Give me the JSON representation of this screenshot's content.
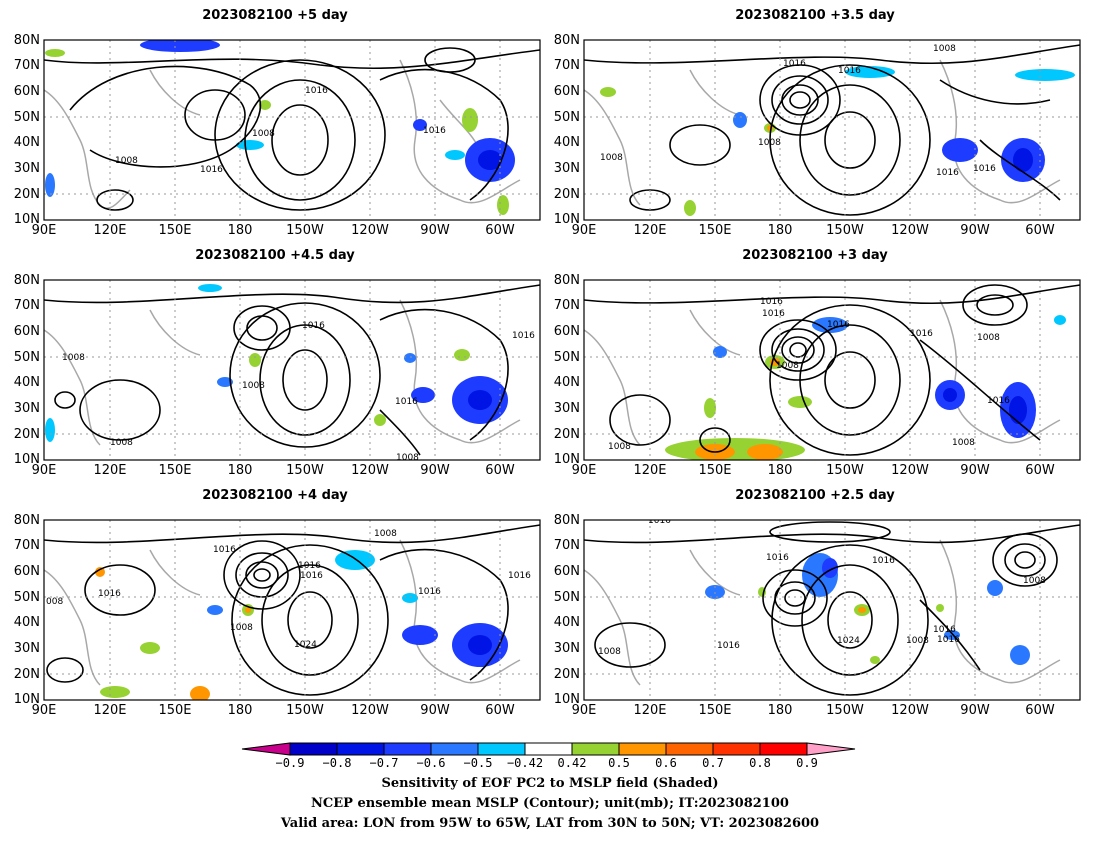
{
  "panels": [
    {
      "title": "2023082100 +5 day",
      "contour_labels": [
        "1016",
        "1008",
        "1016",
        "1008",
        "1016"
      ]
    },
    {
      "title": "2023082100 +3.5 day",
      "contour_labels": [
        "1008",
        "1016",
        "1016",
        "1008",
        "1008",
        "1016",
        "1016"
      ]
    },
    {
      "title": "2023082100 +4.5 day",
      "contour_labels": [
        "1016",
        "1016",
        "1008",
        "1008",
        "1016",
        "1008",
        "1008"
      ]
    },
    {
      "title": "2023082100 +3 day",
      "contour_labels": [
        "1016",
        "1016",
        "1016",
        "1016",
        "1008",
        "1008",
        "1016",
        "1008",
        "1008"
      ]
    },
    {
      "title": "2023082100 +4 day",
      "contour_labels": [
        "1008",
        "1016",
        "1016",
        "1016",
        "1016",
        "1016",
        "1016",
        "1008",
        "1024",
        "008"
      ]
    },
    {
      "title": "2023082100 +2.5 day",
      "contour_labels": [
        "1016",
        "1016",
        "1016",
        "1008",
        "1016",
        "1024",
        "1016",
        "1008",
        "1016",
        "1008"
      ]
    }
  ],
  "axes": {
    "y_ticks": [
      "80N",
      "70N",
      "60N",
      "50N",
      "40N",
      "30N",
      "20N",
      "10N"
    ],
    "x_ticks": [
      "90E",
      "120E",
      "150E",
      "180",
      "150W",
      "120W",
      "90W",
      "60W"
    ]
  },
  "colorbar": {
    "labels": [
      "−0.9",
      "−0.8",
      "−0.7",
      "−0.6",
      "−0.5",
      "−0.42",
      "0.42",
      "0.5",
      "0.6",
      "0.7",
      "0.8",
      "0.9"
    ],
    "colors": [
      "#c8008c",
      "#0000c8",
      "#0014e6",
      "#1e3cff",
      "#2a78ff",
      "#00c8ff",
      "#ffffff",
      "#96d232",
      "#ff9600",
      "#ff6400",
      "#ff3200",
      "#ff0000",
      "#ffa0c8"
    ]
  },
  "caption": {
    "line1": "Sensitivity of EOF PC2 to MSLP field (Shaded)",
    "line2": "NCEP ensemble mean MSLP (Contour); unit(mb); IT:2023082100",
    "line3": "Valid area: LON from 95W to 65W, LAT from 30N to 50N; VT: 2023082600"
  }
}
